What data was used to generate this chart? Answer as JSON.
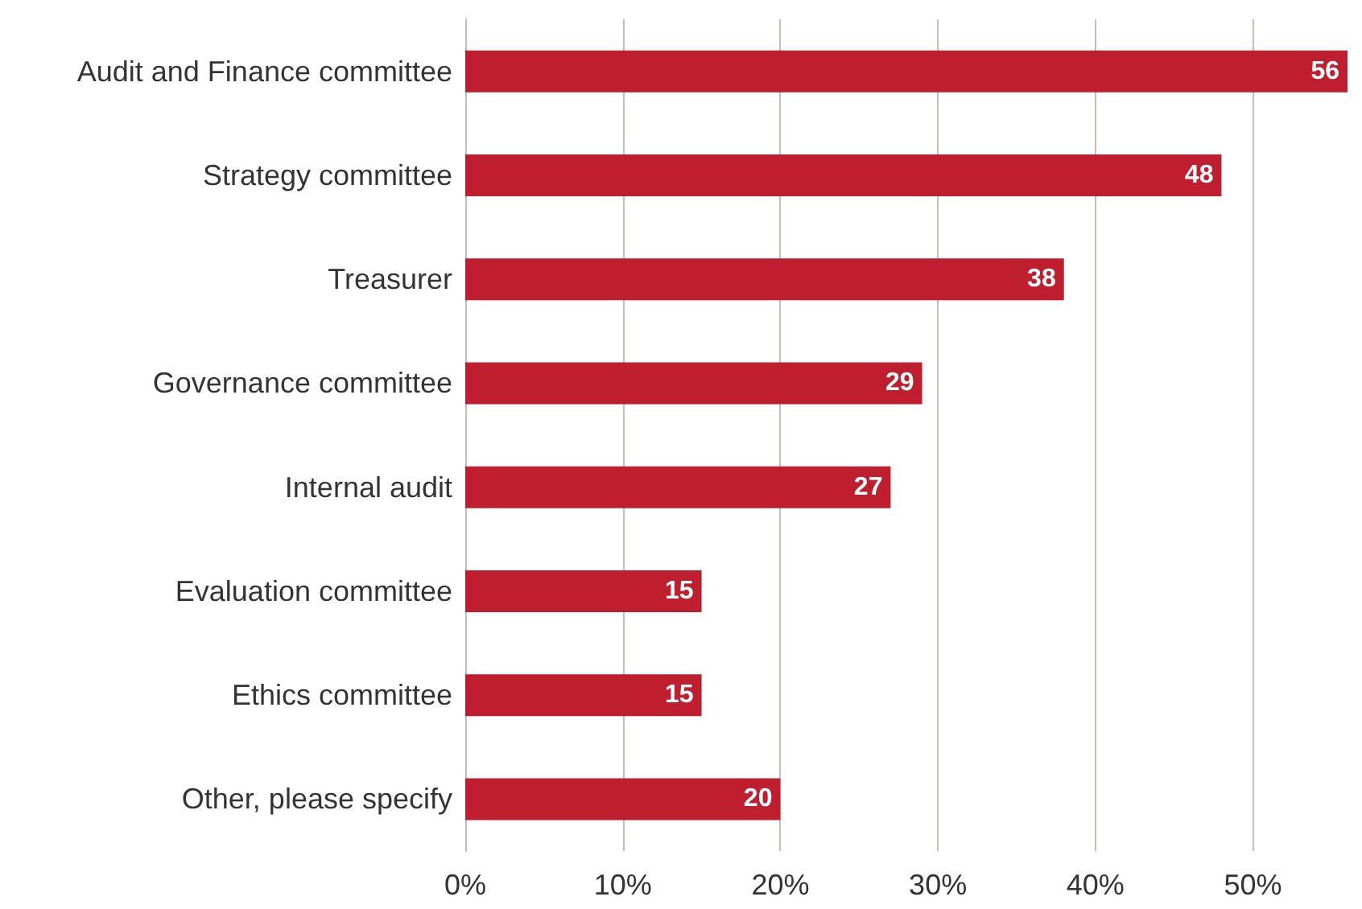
{
  "chart_data": {
    "type": "bar",
    "orientation": "horizontal",
    "categories": [
      "Audit and Finance committee",
      "Strategy committee",
      "Treasurer",
      "Governance committee",
      "Internal audit",
      "Evaluation committee",
      "Ethics committee",
      "Other, please specify"
    ],
    "values": [
      56,
      48,
      38,
      29,
      27,
      15,
      15,
      20
    ],
    "color": "#be1e2d",
    "xlim": [
      0,
      56
    ],
    "xticks": [
      {
        "value": 0,
        "label": "0%"
      },
      {
        "value": 10,
        "label": "10%"
      },
      {
        "value": 20,
        "label": "20%"
      },
      {
        "value": 30,
        "label": "30%"
      },
      {
        "value": 40,
        "label": "40%"
      },
      {
        "value": 50,
        "label": "50%"
      }
    ],
    "grid": "x",
    "data_labels": true
  }
}
